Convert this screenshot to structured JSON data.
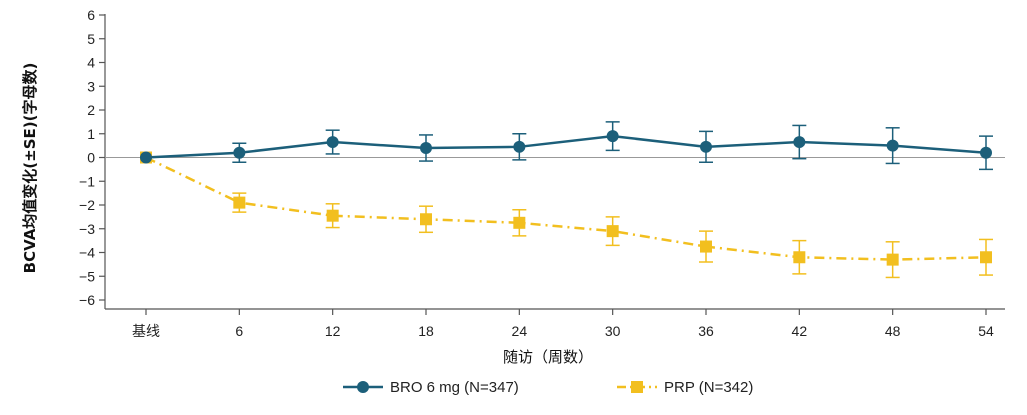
{
  "chart_data": {
    "type": "line",
    "x_categories": [
      "基线",
      "6",
      "12",
      "18",
      "24",
      "30",
      "36",
      "42",
      "48",
      "54"
    ],
    "xlabel": "随访（周数）",
    "ylabel": "BCVA均值变化(±SE)(字母数)",
    "ylim": [
      -6,
      6
    ],
    "yticks": [
      6,
      5,
      4,
      3,
      2,
      1,
      0,
      -1,
      -2,
      -3,
      -4,
      -5,
      -6
    ],
    "reference_line": 0,
    "grid": false,
    "legend_position": "bottom",
    "series": [
      {
        "name": "BRO 6 mg (N=347)",
        "color": "#1c5f7a",
        "marker": "circle",
        "line_style": "solid",
        "values": [
          0,
          0.2,
          0.65,
          0.4,
          0.45,
          0.9,
          0.45,
          0.65,
          0.5,
          0.2
        ],
        "error": [
          0,
          0.4,
          0.5,
          0.55,
          0.55,
          0.6,
          0.65,
          0.7,
          0.75,
          0.7
        ]
      },
      {
        "name": "PRP (N=342)",
        "color": "#f2bf1f",
        "marker": "square",
        "line_style": "dash-dot",
        "values": [
          0,
          -1.9,
          -2.45,
          -2.6,
          -2.75,
          -3.1,
          -3.75,
          -4.2,
          -4.3,
          -4.2
        ],
        "error": [
          0,
          0.4,
          0.5,
          0.55,
          0.55,
          0.6,
          0.65,
          0.7,
          0.75,
          0.75
        ]
      }
    ]
  }
}
